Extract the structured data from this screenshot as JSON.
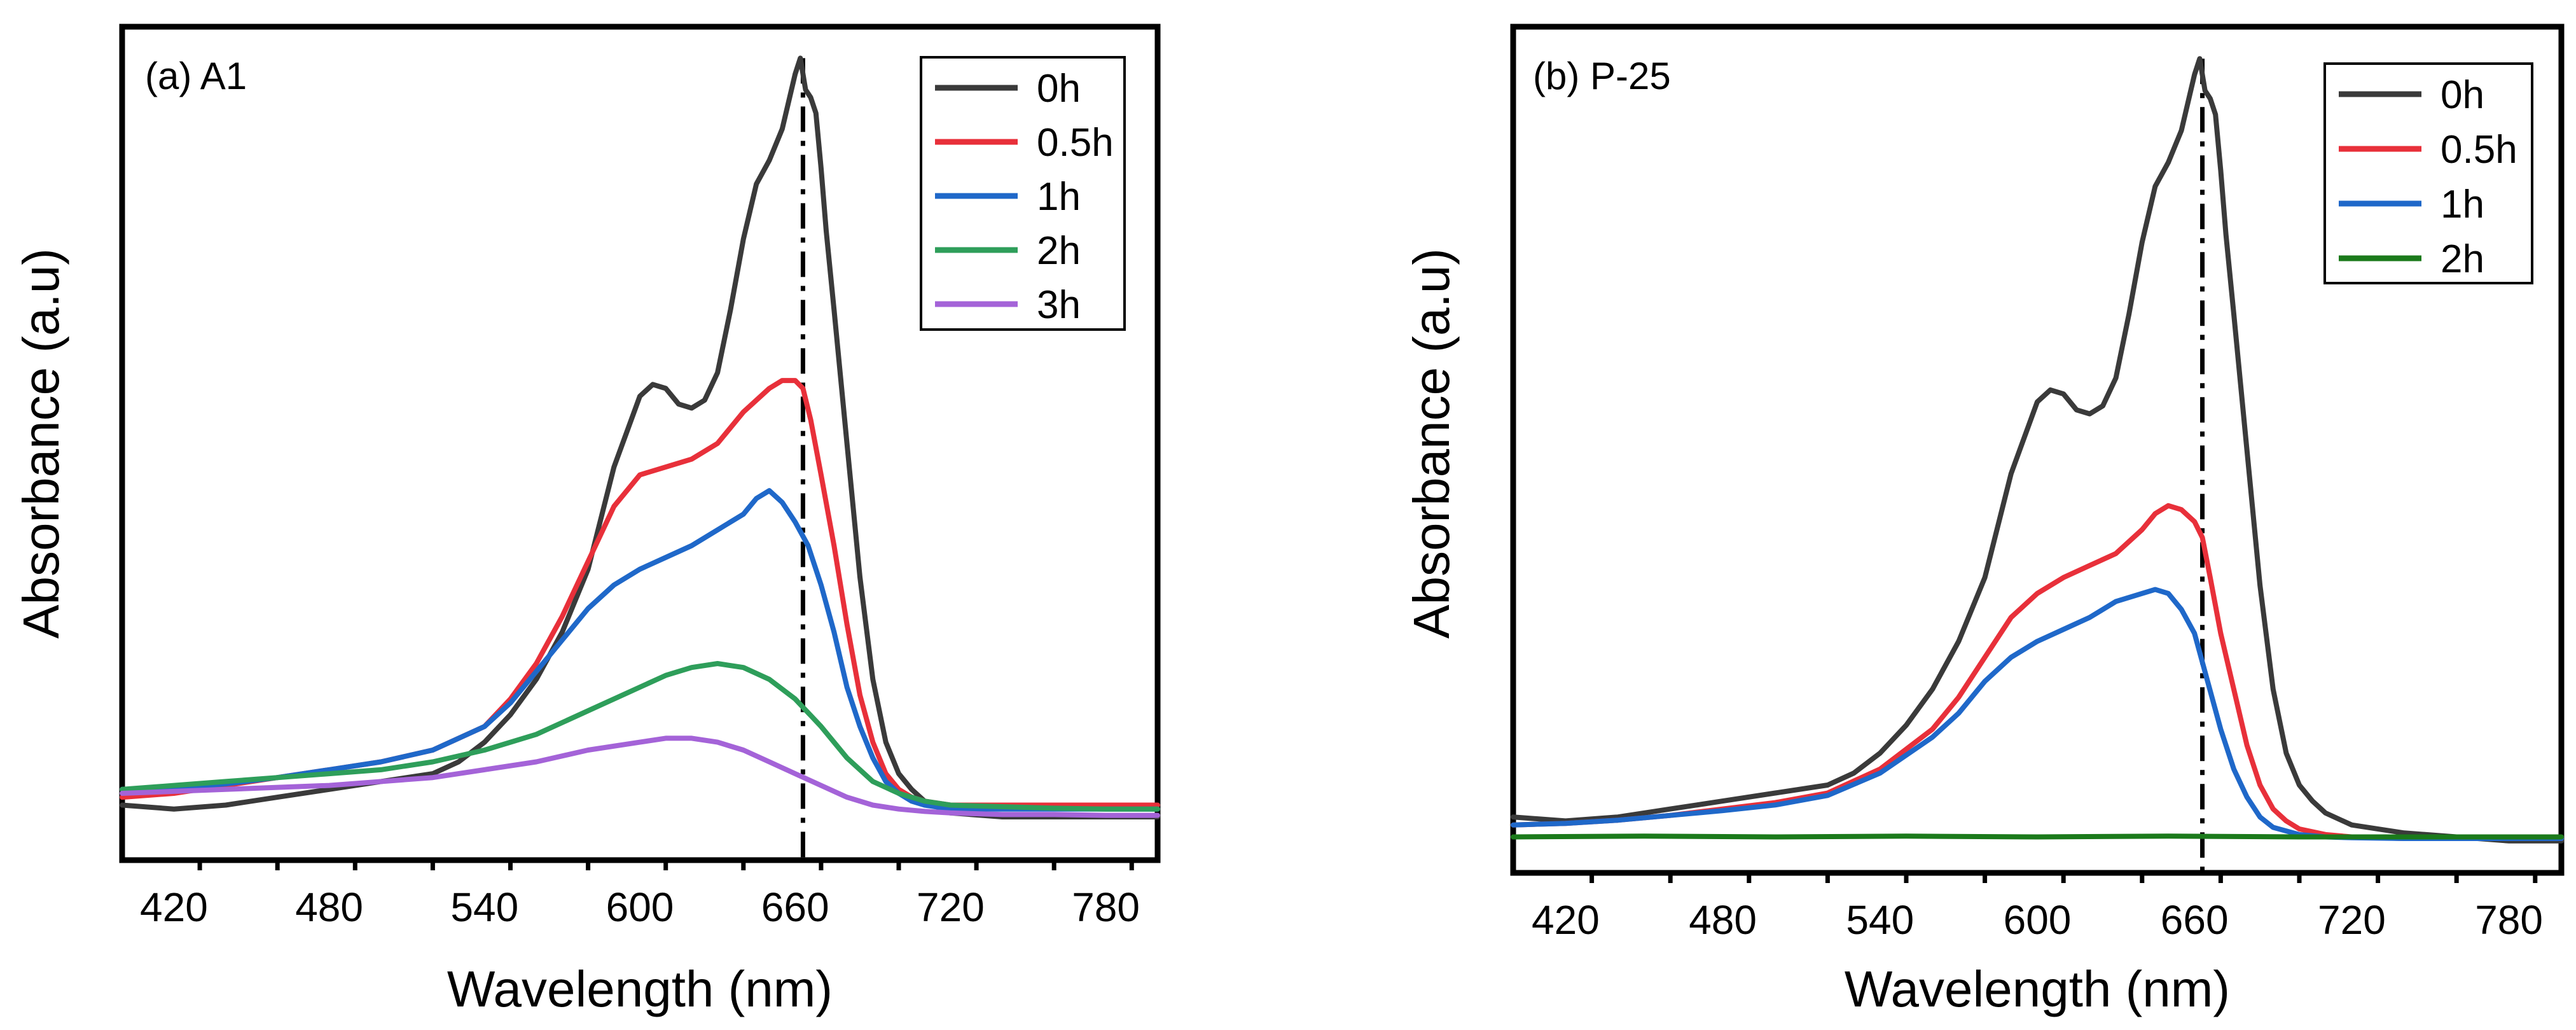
{
  "chart_data": [
    {
      "type": "line",
      "panel_label": "(a) A1",
      "xlabel": "Wavelength (nm)",
      "ylabel": "Absorbance (a.u)",
      "xlim": [
        400,
        800
      ],
      "ylim": [
        0,
        1.06
      ],
      "xticks": [
        420,
        480,
        540,
        600,
        660,
        720,
        780
      ],
      "y_tick_labels": false,
      "reference_line": {
        "x": 663,
        "style": "dash-dot"
      },
      "legend_position": "top-right",
      "series": [
        {
          "name": "0h",
          "color": "#3a3a3a",
          "x": [
            400,
            420,
            440,
            460,
            480,
            500,
            520,
            530,
            540,
            550,
            560,
            570,
            580,
            590,
            600,
            605,
            610,
            615,
            620,
            625,
            630,
            635,
            640,
            645,
            650,
            655,
            660,
            662,
            664,
            666,
            668,
            670,
            672,
            675,
            680,
            685,
            690,
            695,
            700,
            705,
            710,
            720,
            740,
            760,
            780,
            800
          ],
          "y": [
            0.07,
            0.065,
            0.07,
            0.08,
            0.09,
            0.1,
            0.11,
            0.125,
            0.15,
            0.185,
            0.23,
            0.29,
            0.37,
            0.5,
            0.59,
            0.605,
            0.6,
            0.58,
            0.575,
            0.585,
            0.62,
            0.7,
            0.79,
            0.86,
            0.89,
            0.93,
            1.0,
            1.02,
            0.98,
            0.97,
            0.95,
            0.88,
            0.8,
            0.7,
            0.53,
            0.36,
            0.23,
            0.15,
            0.11,
            0.09,
            0.075,
            0.06,
            0.055,
            0.055,
            0.055,
            0.055
          ]
        },
        {
          "name": "0.5h",
          "color": "#e8303a",
          "x": [
            400,
            420,
            440,
            460,
            480,
            500,
            520,
            540,
            550,
            560,
            570,
            580,
            590,
            600,
            610,
            620,
            630,
            640,
            650,
            655,
            660,
            663,
            666,
            670,
            675,
            680,
            685,
            690,
            695,
            700,
            705,
            710,
            720,
            740,
            760,
            780,
            800
          ],
          "y": [
            0.08,
            0.085,
            0.095,
            0.105,
            0.115,
            0.125,
            0.14,
            0.17,
            0.205,
            0.25,
            0.31,
            0.38,
            0.45,
            0.49,
            0.5,
            0.51,
            0.53,
            0.57,
            0.6,
            0.61,
            0.61,
            0.6,
            0.56,
            0.49,
            0.4,
            0.3,
            0.21,
            0.15,
            0.11,
            0.09,
            0.08,
            0.075,
            0.07,
            0.07,
            0.07,
            0.07,
            0.07
          ]
        },
        {
          "name": "1h",
          "color": "#1f68c9",
          "x": [
            400,
            420,
            440,
            460,
            480,
            500,
            520,
            540,
            550,
            560,
            570,
            580,
            590,
            600,
            610,
            620,
            630,
            640,
            645,
            650,
            655,
            660,
            665,
            670,
            675,
            680,
            685,
            690,
            695,
            700,
            705,
            710,
            720,
            740,
            760,
            780,
            800
          ],
          "y": [
            0.09,
            0.092,
            0.097,
            0.105,
            0.115,
            0.125,
            0.14,
            0.17,
            0.2,
            0.24,
            0.28,
            0.32,
            0.35,
            0.37,
            0.385,
            0.4,
            0.42,
            0.44,
            0.46,
            0.47,
            0.455,
            0.43,
            0.4,
            0.35,
            0.29,
            0.22,
            0.17,
            0.13,
            0.1,
            0.085,
            0.075,
            0.07,
            0.065,
            0.065,
            0.065,
            0.065,
            0.065
          ]
        },
        {
          "name": "2h",
          "color": "#2e9e5a",
          "x": [
            400,
            420,
            440,
            460,
            480,
            500,
            520,
            540,
            560,
            580,
            600,
            610,
            620,
            630,
            640,
            650,
            660,
            670,
            680,
            690,
            700,
            710,
            720,
            740,
            760,
            780,
            800
          ],
          "y": [
            0.09,
            0.095,
            0.1,
            0.105,
            0.11,
            0.115,
            0.125,
            0.14,
            0.16,
            0.19,
            0.22,
            0.235,
            0.245,
            0.25,
            0.245,
            0.23,
            0.205,
            0.17,
            0.13,
            0.1,
            0.085,
            0.075,
            0.07,
            0.068,
            0.066,
            0.065,
            0.065
          ]
        },
        {
          "name": "3h",
          "color": "#a463d8",
          "x": [
            400,
            440,
            480,
            520,
            560,
            580,
            600,
            610,
            620,
            630,
            640,
            650,
            660,
            670,
            680,
            690,
            700,
            710,
            720,
            740,
            760,
            780,
            800
          ],
          "y": [
            0.085,
            0.09,
            0.095,
            0.105,
            0.125,
            0.14,
            0.15,
            0.155,
            0.155,
            0.15,
            0.14,
            0.125,
            0.11,
            0.095,
            0.08,
            0.07,
            0.065,
            0.062,
            0.06,
            0.058,
            0.058,
            0.057,
            0.057
          ]
        }
      ]
    },
    {
      "type": "line",
      "panel_label": "(b) P-25",
      "xlabel": "Wavelength (nm)",
      "ylabel": "Absorbance (a.u)",
      "xlim": [
        400,
        800
      ],
      "ylim": [
        0,
        1.06
      ],
      "xticks": [
        420,
        480,
        540,
        600,
        660,
        720,
        780
      ],
      "y_tick_labels": false,
      "reference_line": {
        "x": 663,
        "style": "dash-dot"
      },
      "legend_position": "top-right",
      "series": [
        {
          "name": "0h",
          "color": "#3a3a3a",
          "x": [
            400,
            420,
            440,
            460,
            480,
            500,
            520,
            530,
            540,
            550,
            560,
            570,
            580,
            590,
            600,
            605,
            610,
            615,
            620,
            625,
            630,
            635,
            640,
            645,
            650,
            655,
            660,
            662,
            664,
            666,
            668,
            670,
            672,
            675,
            680,
            685,
            690,
            695,
            700,
            705,
            710,
            720,
            740,
            760,
            780,
            800
          ],
          "y": [
            0.07,
            0.065,
            0.07,
            0.08,
            0.09,
            0.1,
            0.11,
            0.125,
            0.15,
            0.185,
            0.23,
            0.29,
            0.37,
            0.5,
            0.59,
            0.605,
            0.6,
            0.58,
            0.575,
            0.585,
            0.62,
            0.7,
            0.79,
            0.86,
            0.89,
            0.93,
            1.0,
            1.02,
            0.98,
            0.97,
            0.95,
            0.88,
            0.8,
            0.7,
            0.53,
            0.36,
            0.23,
            0.15,
            0.11,
            0.09,
            0.075,
            0.06,
            0.05,
            0.045,
            0.04,
            0.04
          ]
        },
        {
          "name": "0.5h",
          "color": "#e8303a",
          "x": [
            400,
            420,
            440,
            460,
            480,
            500,
            520,
            540,
            560,
            570,
            580,
            590,
            600,
            610,
            620,
            630,
            640,
            645,
            650,
            655,
            660,
            663,
            666,
            670,
            675,
            680,
            685,
            690,
            695,
            700,
            710,
            720,
            740,
            760,
            780,
            800
          ],
          "y": [
            0.06,
            0.062,
            0.066,
            0.072,
            0.08,
            0.088,
            0.1,
            0.13,
            0.18,
            0.22,
            0.27,
            0.32,
            0.35,
            0.37,
            0.385,
            0.4,
            0.43,
            0.45,
            0.46,
            0.455,
            0.44,
            0.42,
            0.37,
            0.3,
            0.23,
            0.16,
            0.11,
            0.08,
            0.065,
            0.055,
            0.048,
            0.045,
            0.043,
            0.043,
            0.043,
            0.043
          ]
        },
        {
          "name": "1h",
          "color": "#1f68c9",
          "x": [
            400,
            420,
            440,
            460,
            480,
            500,
            520,
            540,
            560,
            570,
            580,
            590,
            600,
            610,
            620,
            630,
            640,
            645,
            650,
            655,
            660,
            665,
            670,
            675,
            680,
            685,
            690,
            700,
            710,
            720,
            740,
            760,
            780,
            800
          ],
          "y": [
            0.06,
            0.062,
            0.066,
            0.072,
            0.078,
            0.085,
            0.097,
            0.125,
            0.17,
            0.2,
            0.24,
            0.27,
            0.29,
            0.305,
            0.32,
            0.34,
            0.35,
            0.355,
            0.35,
            0.33,
            0.3,
            0.24,
            0.18,
            0.13,
            0.095,
            0.07,
            0.057,
            0.048,
            0.045,
            0.044,
            0.043,
            0.043,
            0.043,
            0.043
          ]
        },
        {
          "name": "2h",
          "color": "#1b7a1b",
          "x": [
            400,
            450,
            500,
            550,
            600,
            650,
            700,
            750,
            800
          ],
          "y": [
            0.045,
            0.046,
            0.045,
            0.046,
            0.045,
            0.046,
            0.045,
            0.045,
            0.045
          ]
        }
      ]
    }
  ]
}
